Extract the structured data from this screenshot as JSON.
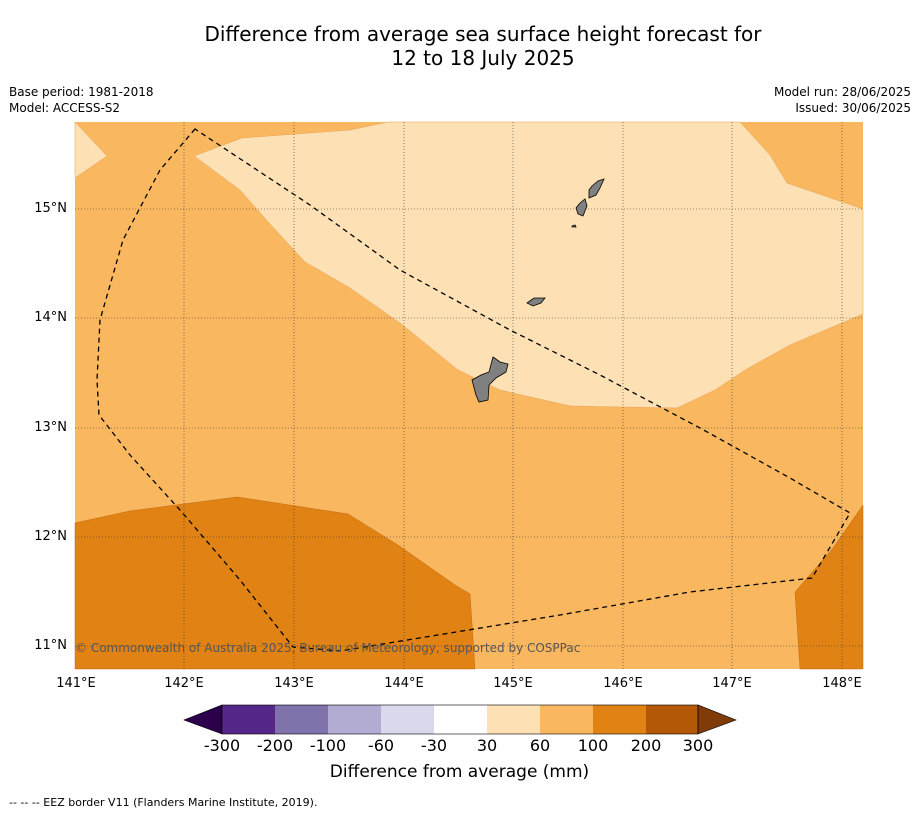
{
  "title_line1": "Difference from average sea surface height forecast for",
  "title_line2": "12 to 18 July 2025",
  "info_left": {
    "base_period": "Base period: 1981-2018",
    "model": "Model: ACCESS-S2"
  },
  "info_right": {
    "model_run": "Model run: 28/06/2025",
    "issued": "Issued: 30/06/2025"
  },
  "map": {
    "lat_labels": [
      "15°N",
      "14°N",
      "13°N",
      "12°N",
      "11°N"
    ],
    "lon_labels": [
      "141°E",
      "142°E",
      "143°E",
      "144°E",
      "145°E",
      "146°E",
      "147°E",
      "148°E"
    ],
    "copyright": "© Commonwealth of Australia 2025, Bureau of Meteorology, supported by COSPPac",
    "zone_colors": {
      "band_30_60": "#fde0b3",
      "band_60_100": "#f9b75f",
      "band_100_200": "#e08214",
      "land": "#808080"
    }
  },
  "colorbar": {
    "labels": [
      "-300",
      "-200",
      "-100",
      "-60",
      "-30",
      "30",
      "60",
      "100",
      "200",
      "300"
    ],
    "colors": [
      "#2d004b",
      "#542788",
      "#8073ac",
      "#b2abd2",
      "#d8daeb",
      "#ffffff",
      "#fde0b3",
      "#f9b75f",
      "#e08214",
      "#b35806",
      "#7f3b08"
    ],
    "title": "Difference from average (mm)"
  },
  "footnote": "--  --  -- EEZ border V11 (Flanders Marine Institute, 2019)."
}
